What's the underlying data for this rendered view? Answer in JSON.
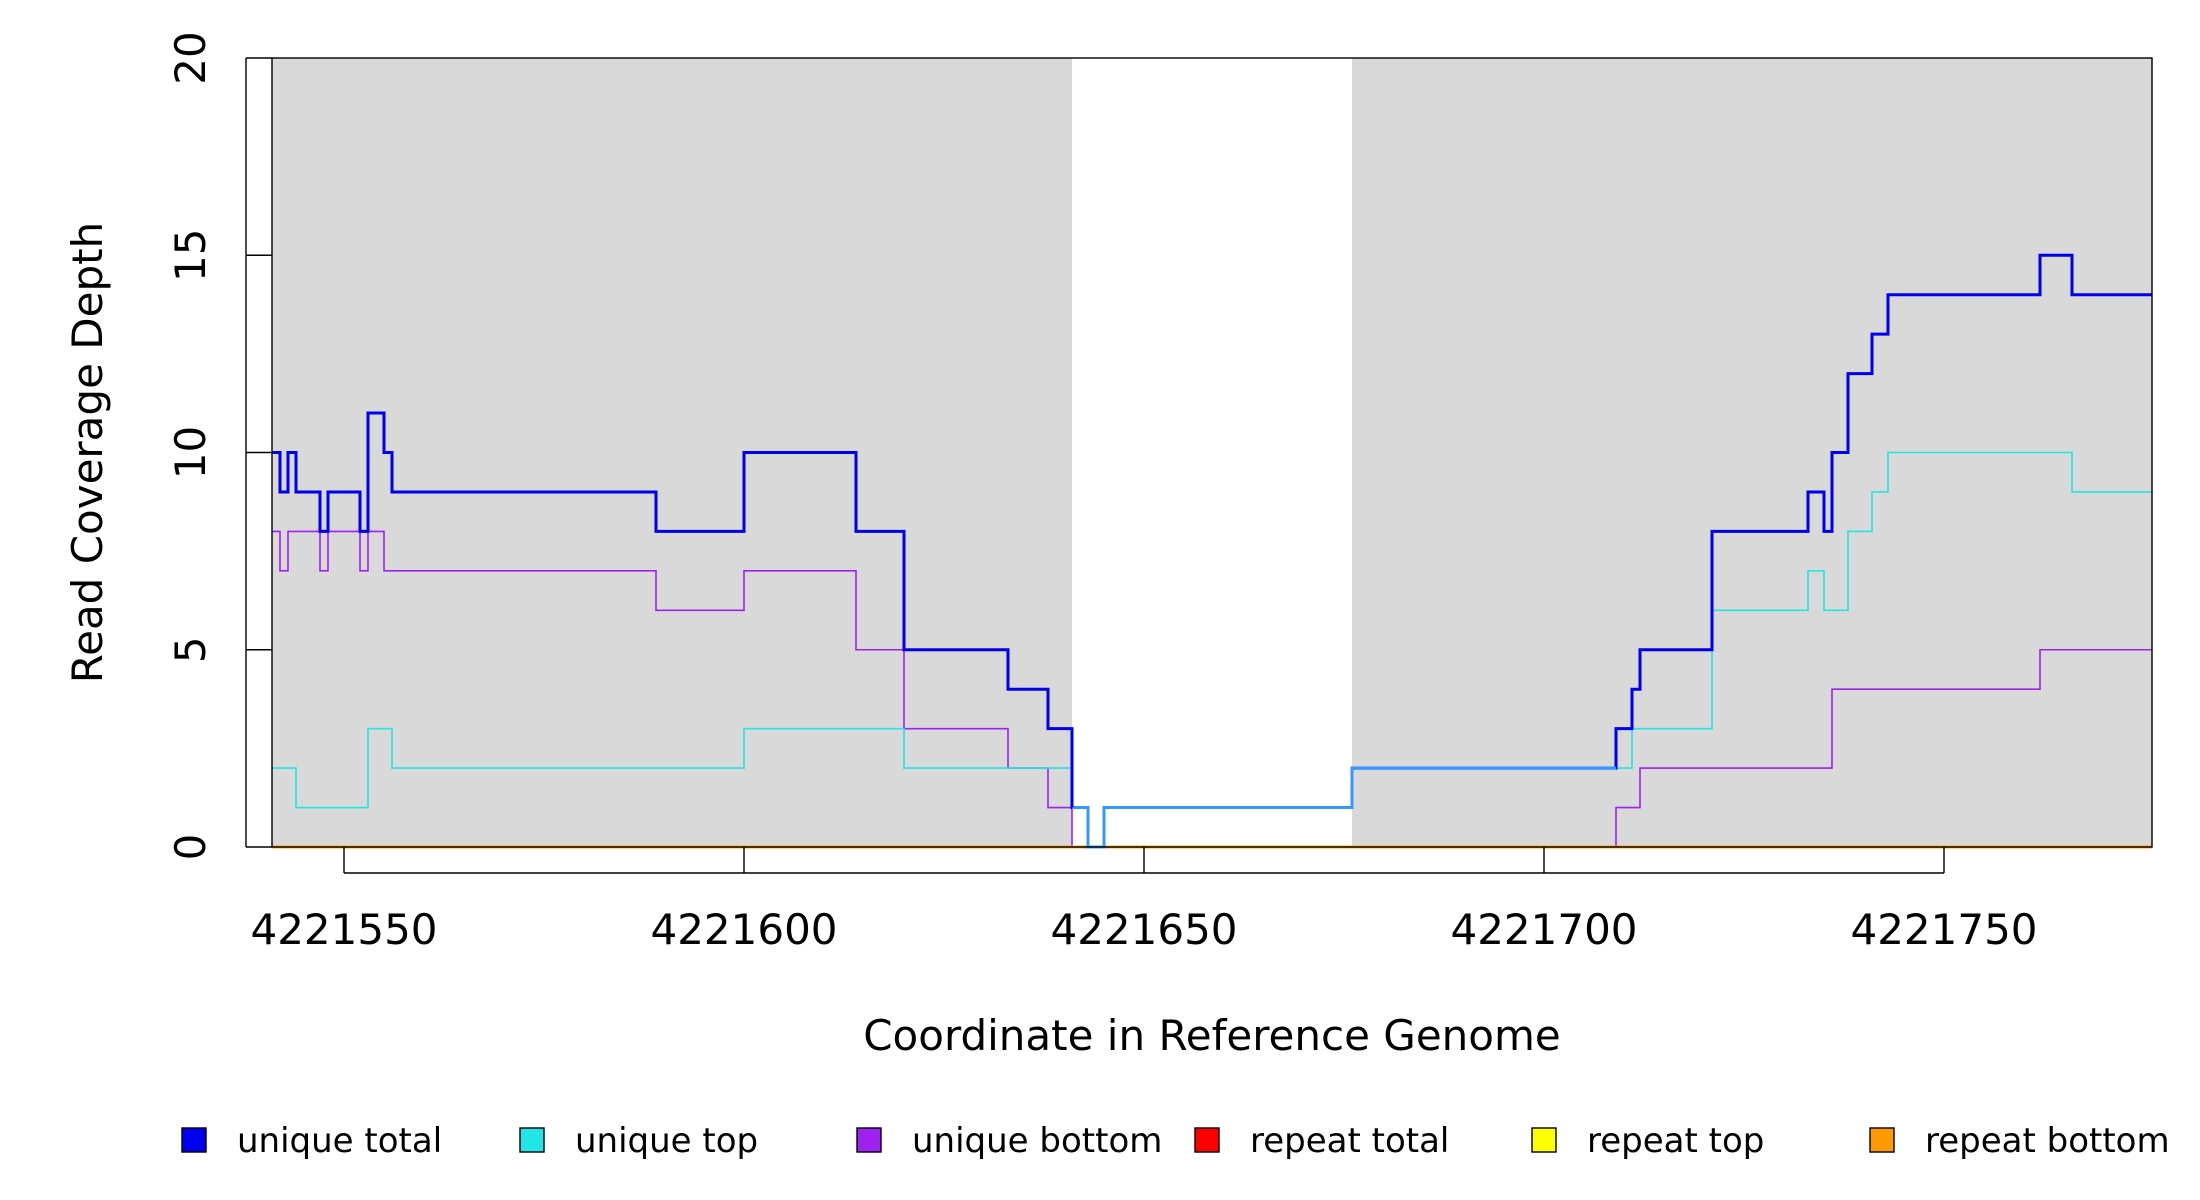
{
  "chart_data": {
    "type": "line",
    "xlabel": "Coordinate in Reference Genome",
    "ylabel": "Read Coverage Depth",
    "xlim": [
      4221541,
      4221776
    ],
    "ylim": [
      0,
      20
    ],
    "xticks": [
      4221550,
      4221600,
      4221650,
      4221700,
      4221750
    ],
    "yticks": [
      0,
      5,
      10,
      15,
      20
    ],
    "shaded_regions": [
      [
        4221541,
        4221641
      ],
      [
        4221676,
        4221776
      ]
    ],
    "shade_color": "#d9d9d9",
    "legend_position": "bottom",
    "series": [
      {
        "name": "unique total",
        "color": "#0000ee",
        "points": [
          [
            4221541,
            10
          ],
          [
            4221542,
            9
          ],
          [
            4221543,
            10
          ],
          [
            4221544,
            9
          ],
          [
            4221547,
            8
          ],
          [
            4221548,
            9
          ],
          [
            4221552,
            8
          ],
          [
            4221553,
            11
          ],
          [
            4221555,
            10
          ],
          [
            4221556,
            9
          ],
          [
            4221589,
            8
          ],
          [
            4221600,
            10
          ],
          [
            4221614,
            8
          ],
          [
            4221620,
            5
          ],
          [
            4221633,
            4
          ],
          [
            4221638,
            3
          ],
          [
            4221641,
            1
          ],
          [
            4221643,
            0
          ],
          [
            4221645,
            1
          ],
          [
            4221676,
            2
          ],
          [
            4221709,
            3
          ],
          [
            4221711,
            4
          ],
          [
            4221712,
            5
          ],
          [
            4221721,
            8
          ],
          [
            4221733,
            9
          ],
          [
            4221735,
            8
          ],
          [
            4221736,
            10
          ],
          [
            4221738,
            12
          ],
          [
            4221741,
            13
          ],
          [
            4221743,
            14
          ],
          [
            4221762,
            15
          ],
          [
            4221766,
            14
          ],
          [
            4221776,
            14
          ]
        ]
      },
      {
        "name": "unique top",
        "color": "#22e5e5",
        "points": [
          [
            4221541,
            2
          ],
          [
            4221544,
            1
          ],
          [
            4221553,
            3
          ],
          [
            4221556,
            2
          ],
          [
            4221600,
            3
          ],
          [
            4221620,
            2
          ],
          [
            4221641,
            1
          ],
          [
            4221643,
            0
          ],
          [
            4221645,
            1
          ],
          [
            4221676,
            2
          ],
          [
            4221711,
            3
          ],
          [
            4221721,
            6
          ],
          [
            4221733,
            7
          ],
          [
            4221735,
            6
          ],
          [
            4221738,
            8
          ],
          [
            4221741,
            9
          ],
          [
            4221743,
            10
          ],
          [
            4221766,
            9
          ],
          [
            4221776,
            9
          ]
        ]
      },
      {
        "name": "unique bottom",
        "color": "#a020f0",
        "points": [
          [
            4221541,
            8
          ],
          [
            4221542,
            7
          ],
          [
            4221543,
            8
          ],
          [
            4221547,
            7
          ],
          [
            4221548,
            8
          ],
          [
            4221552,
            7
          ],
          [
            4221553,
            8
          ],
          [
            4221555,
            7
          ],
          [
            4221589,
            6
          ],
          [
            4221600,
            7
          ],
          [
            4221614,
            5
          ],
          [
            4221620,
            3
          ],
          [
            4221633,
            2
          ],
          [
            4221638,
            1
          ],
          [
            4221641,
            0
          ],
          [
            4221709,
            1
          ],
          [
            4221712,
            2
          ],
          [
            4221736,
            4
          ],
          [
            4221762,
            5
          ],
          [
            4221776,
            5
          ]
        ]
      },
      {
        "name": "repeat total",
        "color": "#ff0000",
        "points": [
          [
            4221541,
            0
          ],
          [
            4221776,
            0
          ]
        ]
      },
      {
        "name": "repeat top",
        "color": "#ffff00",
        "points": [
          [
            4221541,
            0
          ],
          [
            4221776,
            0
          ]
        ]
      },
      {
        "name": "repeat bottom",
        "color": "#ff9900",
        "points": [
          [
            4221541,
            0
          ],
          [
            4221776,
            0
          ]
        ]
      }
    ],
    "overlap_color": "#3399ff"
  }
}
